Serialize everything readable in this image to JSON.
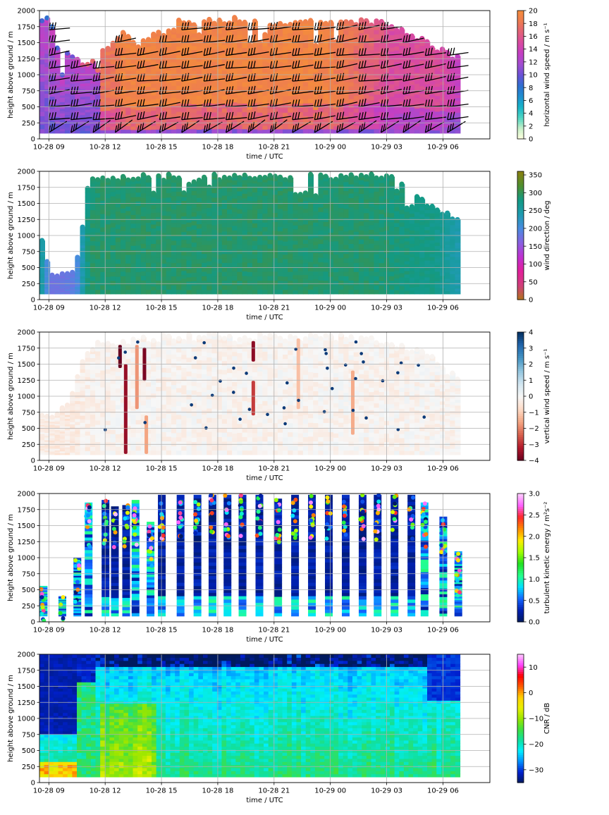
{
  "chart_data": [
    {
      "id": "hws",
      "type": "heatmap",
      "ylabel": "height above ground / m",
      "xlabel": "time / UTC",
      "colorbar_label": "horizontal wind speed / m s⁻¹",
      "cbar_ticks": [
        "0",
        "2",
        "4",
        "6",
        "8",
        "10",
        "12",
        "14",
        "16",
        "18",
        "20"
      ],
      "cbar_range": [
        0,
        20
      ],
      "colormap": [
        "#ffffe0",
        "#c9f0c9",
        "#4fd6c3",
        "#17b4c8",
        "#1f8fd0",
        "#2f6fd0",
        "#6a52d6",
        "#a24fd0",
        "#c33fc4",
        "#d84aa2",
        "#e2627a",
        "#ed7b52",
        "#f48c3d"
      ],
      "overlay": "wind barbs",
      "columns": [
        [
          0,
          1.0,
          9
        ],
        [
          0.4,
          0.95,
          8
        ],
        [
          0.8,
          0.75,
          9
        ],
        [
          1.6,
          0.65,
          10
        ],
        [
          1.9,
          0.65,
          14
        ],
        [
          2.3,
          0.6,
          17
        ],
        [
          4.0,
          0.8,
          18
        ],
        [
          4.3,
          0.88,
          19
        ],
        [
          5.1,
          0.75,
          19
        ],
        [
          6.2,
          0.85,
          19
        ],
        [
          7.0,
          0.85,
          19
        ],
        [
          7.3,
          0.95,
          19
        ],
        [
          8.5,
          0.93,
          19
        ],
        [
          10,
          0.95,
          19
        ],
        [
          11.7,
          0.93,
          19
        ],
        [
          13.5,
          0.93,
          19
        ],
        [
          15.3,
          0.93,
          19
        ],
        [
          17.0,
          0.93,
          17
        ],
        [
          17.8,
          0.94,
          16
        ],
        [
          18.6,
          0.9,
          15
        ],
        [
          19.8,
          0.82,
          15
        ],
        [
          21.1,
          0.72,
          15
        ],
        [
          22.3,
          0.64,
          13
        ]
      ],
      "x_ticks": [
        "10-28 09",
        "10-28 12",
        "10-28 15",
        "10-28 18",
        "10-28 21",
        "10-29 00",
        "10-29 03",
        "10-29 06"
      ],
      "y_ticks": [
        "0",
        "250",
        "500",
        "750",
        "1000",
        "1250",
        "1500",
        "1750",
        "2000"
      ],
      "ylim": [
        0,
        2000
      ]
    },
    {
      "id": "wdir",
      "type": "heatmap",
      "ylabel": "height above ground / m",
      "xlabel": "time / UTC",
      "colorbar_label": "wind direction / deg",
      "cbar_ticks": [
        "0",
        "50",
        "100",
        "150",
        "200",
        "250",
        "300",
        "350"
      ],
      "cbar_range": [
        0,
        360
      ],
      "colormap": [
        "#b0751b",
        "#d0407a",
        "#e2209a",
        "#c030d0",
        "#8a60e0",
        "#4a8be0",
        "#1e9bb0",
        "#139a84",
        "#4f8f30",
        "#8a7f10"
      ],
      "columns": [
        [
          0,
          0.48,
          250
        ],
        [
          0.4,
          0.23,
          180
        ],
        [
          1.2,
          0.23,
          180
        ],
        [
          1.8,
          0.25,
          190
        ],
        [
          2.5,
          0.94,
          290
        ],
        [
          4.3,
          0.98,
          292
        ],
        [
          7.0,
          0.98,
          292
        ],
        [
          10,
          0.98,
          292
        ],
        [
          13,
          0.98,
          292
        ],
        [
          16,
          0.98,
          290
        ],
        [
          17.3,
          0.98,
          290
        ],
        [
          18.5,
          0.97,
          288
        ],
        [
          19.6,
          0.88,
          280
        ],
        [
          21,
          0.72,
          275
        ],
        [
          22.3,
          0.64,
          240
        ]
      ],
      "x_ticks": [
        "10-28 09",
        "10-28 12",
        "10-28 15",
        "10-28 18",
        "10-28 21",
        "10-29 00",
        "10-29 03",
        "10-29 06"
      ],
      "y_ticks": [
        "0",
        "250",
        "500",
        "750",
        "1000",
        "1250",
        "1500",
        "1750",
        "2000"
      ],
      "ylim": [
        0,
        2000
      ]
    },
    {
      "id": "vws",
      "type": "heatmap",
      "ylabel": "height above ground / m",
      "xlabel": "time / UTC",
      "colorbar_label": "vertical wind speed / m s⁻¹",
      "cbar_ticks": [
        "−4",
        "−3",
        "−2",
        "−1",
        "0",
        "1",
        "2",
        "3",
        "4"
      ],
      "cbar_range": [
        -4,
        4
      ],
      "colormap": [
        "#67001f",
        "#b2182b",
        "#d6604d",
        "#f4a582",
        "#fddbc7",
        "#f7f7f7",
        "#d1e5f0",
        "#92c5de",
        "#4393c3",
        "#2166ac",
        "#053061"
      ],
      "columns": [
        [
          0,
          0.35,
          -0.3
        ],
        [
          1.5,
          0.5,
          -0.4
        ],
        [
          2.5,
          0.92,
          -0.2
        ],
        [
          4,
          0.96,
          -0.1
        ],
        [
          7,
          0.99,
          -0.1
        ],
        [
          10,
          0.99,
          -0.1
        ],
        [
          13,
          0.99,
          -0.1
        ],
        [
          16,
          0.99,
          -0.1
        ],
        [
          18,
          0.95,
          -0.1
        ],
        [
          20,
          0.9,
          -0.1
        ],
        [
          22.3,
          0.64,
          -0.1
        ]
      ],
      "streaks": [
        [
          4.2,
          0.72,
          0.9,
          -4
        ],
        [
          4.5,
          0.05,
          0.75,
          -3.5
        ],
        [
          5.1,
          0.4,
          0.9,
          -1.8
        ],
        [
          5.5,
          0.62,
          0.88,
          -3.8
        ],
        [
          5.6,
          0.05,
          0.35,
          -1.6
        ],
        [
          11.3,
          0.35,
          0.62,
          -2.8
        ],
        [
          11.3,
          0.77,
          0.93,
          -3.6
        ],
        [
          13.7,
          0.4,
          0.95,
          -1.2
        ],
        [
          16.6,
          0.2,
          0.7,
          -1.5
        ]
      ],
      "x_ticks": [
        "10-28 09",
        "10-28 12",
        "10-28 15",
        "10-28 18",
        "10-28 21",
        "10-29 00",
        "10-29 03",
        "10-29 06"
      ],
      "y_ticks": [
        "0",
        "250",
        "500",
        "750",
        "1000",
        "1250",
        "1500",
        "1750",
        "2000"
      ],
      "ylim": [
        0,
        2000
      ]
    },
    {
      "id": "tke",
      "type": "heatmap",
      "ylabel": "height above ground / m",
      "xlabel": "time / UTC",
      "colorbar_label": "turbulent kinetic energy / m²s⁻²",
      "cbar_ticks": [
        "0.0",
        "0.5",
        "1.0",
        "1.5",
        "2.0",
        "2.5",
        "3.0"
      ],
      "cbar_range": [
        0,
        3
      ],
      "colormap": [
        "#001a5e",
        "#0020b0",
        "#1565ff",
        "#00e1ff",
        "#25ff8a",
        "#22e022",
        "#a0ff00",
        "#ffee00",
        "#ff8a00",
        "#ff2a2a",
        "#ff60ff",
        "#ffd0ff"
      ],
      "columns": [
        [
          0.2,
          0.28
        ],
        [
          1.2,
          0.2
        ],
        [
          2.0,
          0.5
        ],
        [
          2.6,
          0.93
        ],
        [
          3.5,
          0.95
        ],
        [
          4.0,
          0.9
        ],
        [
          4.6,
          0.91
        ],
        [
          5.1,
          0.95
        ],
        [
          5.9,
          0.78
        ],
        [
          6.5,
          0.99
        ],
        [
          7.5,
          0.99
        ],
        [
          8.4,
          0.99
        ],
        [
          9.2,
          0.99
        ],
        [
          10.0,
          0.99
        ],
        [
          10.8,
          0.99
        ],
        [
          11.7,
          0.99
        ],
        [
          12.7,
          0.96
        ],
        [
          13.6,
          0.99
        ],
        [
          14.5,
          0.99
        ],
        [
          15.4,
          0.99
        ],
        [
          16.3,
          0.99
        ],
        [
          17.2,
          0.99
        ],
        [
          18.0,
          0.99
        ],
        [
          18.9,
          0.99
        ],
        [
          19.8,
          0.99
        ],
        [
          20.5,
          0.93
        ],
        [
          21.5,
          0.82
        ],
        [
          22.3,
          0.55
        ]
      ],
      "x_ticks": [
        "10-28 09",
        "10-28 12",
        "10-28 15",
        "10-28 18",
        "10-28 21",
        "10-29 00",
        "10-29 03",
        "10-29 06"
      ],
      "y_ticks": [
        "0",
        "250",
        "500",
        "750",
        "1000",
        "1250",
        "1500",
        "1750",
        "2000"
      ],
      "ylim": [
        0,
        2000
      ]
    },
    {
      "id": "cnr",
      "type": "heatmap",
      "ylabel": "height above ground / m",
      "xlabel": "time / UTC",
      "colorbar_label": "CNR / dB",
      "cbar_ticks": [
        "−30",
        "−20",
        "−10",
        "0",
        "10"
      ],
      "cbar_range": [
        -35,
        15
      ],
      "colormap": [
        "#001a5e",
        "#0020d0",
        "#0090ff",
        "#00f0ff",
        "#10e0a0",
        "#40e040",
        "#9ae600",
        "#e8f000",
        "#ffd000",
        "#ff6000",
        "#ff0000",
        "#ff40ff",
        "#ffc8ff"
      ],
      "x_ticks": [
        "10-28 09",
        "10-28 12",
        "10-28 15",
        "10-28 18",
        "10-28 21",
        "10-29 00",
        "10-29 03",
        "10-29 06"
      ],
      "y_ticks": [
        "0",
        "250",
        "500",
        "750",
        "1000",
        "1250",
        "1500",
        "1750",
        "2000"
      ],
      "ylim": [
        0,
        2000
      ]
    }
  ]
}
